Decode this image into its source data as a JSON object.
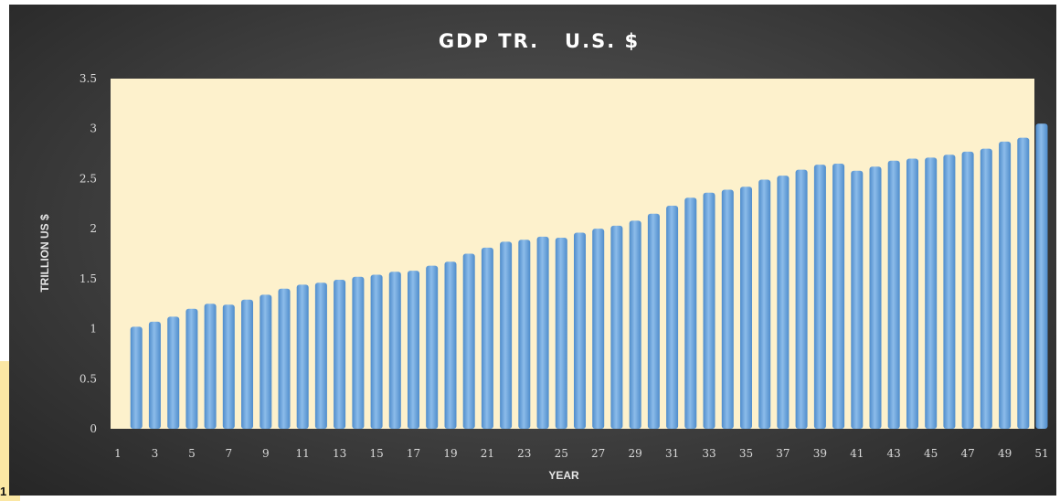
{
  "chart_data": {
    "type": "bar",
    "title": "GDP TR.   U.S. $",
    "xlabel": "YEAR",
    "ylabel": "TRILLION US $",
    "ylim": [
      0,
      3.5
    ],
    "yticks": [
      0,
      0.5,
      1,
      1.5,
      2,
      2.5,
      3,
      3.5
    ],
    "xtick_labels": [
      "1",
      "3",
      "5",
      "7",
      "9",
      "11",
      "13",
      "15",
      "17",
      "19",
      "21",
      "23",
      "25",
      "27",
      "29",
      "31",
      "33",
      "35",
      "37",
      "39",
      "41",
      "43",
      "45",
      "47",
      "49",
      "51"
    ],
    "categories": [
      2,
      3,
      4,
      5,
      6,
      7,
      8,
      9,
      10,
      11,
      12,
      13,
      14,
      15,
      16,
      17,
      18,
      19,
      20,
      21,
      22,
      23,
      24,
      25,
      26,
      27,
      28,
      29,
      30,
      31,
      32,
      33,
      34,
      35,
      36,
      37,
      38,
      39,
      40,
      41,
      42,
      43,
      44,
      45,
      46,
      47,
      48,
      49,
      50,
      51
    ],
    "values": [
      1.02,
      1.07,
      1.12,
      1.2,
      1.25,
      1.24,
      1.29,
      1.34,
      1.4,
      1.44,
      1.46,
      1.49,
      1.52,
      1.54,
      1.57,
      1.58,
      1.63,
      1.67,
      1.75,
      1.81,
      1.87,
      1.89,
      1.92,
      1.91,
      1.96,
      2.0,
      2.03,
      2.08,
      2.15,
      2.23,
      2.31,
      2.36,
      2.39,
      2.42,
      2.49,
      2.53,
      2.59,
      2.64,
      2.65,
      2.58,
      2.62,
      2.68,
      2.7,
      2.71,
      2.74,
      2.77,
      2.8,
      2.87,
      2.91,
      3.05
    ],
    "grid": false,
    "legend": "none"
  },
  "page": {
    "corner_mark": "1"
  },
  "colors": {
    "plot_background": "#fdf1cc",
    "bar": "#5e9bd8",
    "bar_highlight": "#8cbcea"
  }
}
